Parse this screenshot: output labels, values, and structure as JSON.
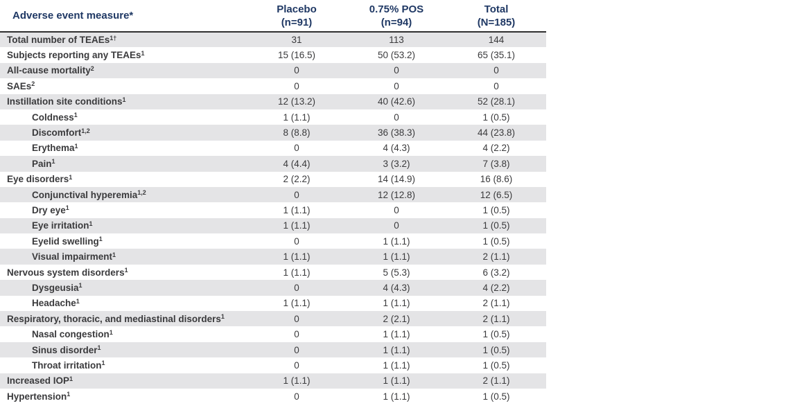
{
  "table": {
    "header": {
      "measure_label": "Adverse event measure*",
      "columns": [
        {
          "line1": "Placebo",
          "line2": "(n=91)"
        },
        {
          "line1": "0.75% POS",
          "line2": "(n=94)"
        },
        {
          "line1": "Total",
          "line2": "(N=185)"
        }
      ]
    },
    "rows": [
      {
        "label": "Total number of TEAEs",
        "sup": "1†",
        "indent": 0,
        "values": [
          "31",
          "113",
          "144"
        ]
      },
      {
        "label": "Subjects reporting any TEAEs",
        "sup": "1",
        "indent": 0,
        "values": [
          "15 (16.5)",
          "50 (53.2)",
          "65 (35.1)"
        ]
      },
      {
        "label": "All-cause mortality",
        "sup": "2",
        "indent": 0,
        "values": [
          "0",
          "0",
          "0"
        ]
      },
      {
        "label": "SAEs",
        "sup": "2",
        "indent": 0,
        "values": [
          "0",
          "0",
          "0"
        ]
      },
      {
        "label": "Instillation site conditions",
        "sup": "1",
        "indent": 0,
        "values": [
          "12 (13.2)",
          "40 (42.6)",
          "52 (28.1)"
        ]
      },
      {
        "label": "Coldness",
        "sup": "1",
        "indent": 1,
        "values": [
          "1 (1.1)",
          "0",
          "1 (0.5)"
        ]
      },
      {
        "label": "Discomfort",
        "sup": "1,2",
        "indent": 1,
        "values": [
          "8 (8.8)",
          "36 (38.3)",
          "44 (23.8)"
        ]
      },
      {
        "label": "Erythema",
        "sup": "1",
        "indent": 1,
        "values": [
          "0",
          "4 (4.3)",
          "4 (2.2)"
        ]
      },
      {
        "label": "Pain",
        "sup": "1",
        "indent": 1,
        "values": [
          "4 (4.4)",
          "3 (3.2)",
          "7 (3.8)"
        ]
      },
      {
        "label": "Eye disorders",
        "sup": "1",
        "indent": 0,
        "values": [
          "2 (2.2)",
          "14 (14.9)",
          "16 (8.6)"
        ]
      },
      {
        "label": "Conjunctival hyperemia",
        "sup": "1,2",
        "indent": 1,
        "values": [
          "0",
          "12 (12.8)",
          "12 (6.5)"
        ]
      },
      {
        "label": "Dry eye",
        "sup": "1",
        "indent": 1,
        "values": [
          "1 (1.1)",
          "0",
          "1 (0.5)"
        ]
      },
      {
        "label": "Eye irritation",
        "sup": "1",
        "indent": 1,
        "values": [
          "1 (1.1)",
          "0",
          "1 (0.5)"
        ]
      },
      {
        "label": "Eyelid swelling",
        "sup": "1",
        "indent": 1,
        "values": [
          "0",
          "1 (1.1)",
          "1 (0.5)"
        ]
      },
      {
        "label": "Visual impairment",
        "sup": "1",
        "indent": 1,
        "values": [
          "1 (1.1)",
          "1 (1.1)",
          "2 (1.1)"
        ]
      },
      {
        "label": "Nervous system disorders",
        "sup": "1",
        "indent": 0,
        "values": [
          "1 (1.1)",
          "5 (5.3)",
          "6 (3.2)"
        ]
      },
      {
        "label": "Dysgeusia",
        "sup": "1",
        "indent": 1,
        "values": [
          "0",
          "4 (4.3)",
          "4 (2.2)"
        ]
      },
      {
        "label": "Headache",
        "sup": "1",
        "indent": 1,
        "values": [
          "1 (1.1)",
          "1 (1.1)",
          "2 (1.1)"
        ]
      },
      {
        "label": "Respiratory, thoracic, and mediastinal disorders",
        "sup": "1",
        "indent": 0,
        "values": [
          "0",
          "2 (2.1)",
          "2 (1.1)"
        ]
      },
      {
        "label": "Nasal congestion",
        "sup": "1",
        "indent": 1,
        "values": [
          "0",
          "1 (1.1)",
          "1 (0.5)"
        ]
      },
      {
        "label": "Sinus disorder",
        "sup": "1",
        "indent": 1,
        "values": [
          "0",
          "1 (1.1)",
          "1 (0.5)"
        ]
      },
      {
        "label": "Throat irritation",
        "sup": "1",
        "indent": 1,
        "values": [
          "0",
          "1 (1.1)",
          "1 (0.5)"
        ]
      },
      {
        "label": "Increased IOP",
        "sup": "1",
        "indent": 0,
        "values": [
          "1 (1.1)",
          "1 (1.1)",
          "2 (1.1)"
        ]
      },
      {
        "label": "Hypertension",
        "sup": "1",
        "indent": 0,
        "values": [
          "0",
          "1 (1.1)",
          "1 (0.5)"
        ]
      }
    ],
    "colors": {
      "header_text": "#1f3864",
      "body_text": "#3a3a3c",
      "stripe": "#e4e4e6",
      "header_border": "#2f2f2f"
    }
  }
}
